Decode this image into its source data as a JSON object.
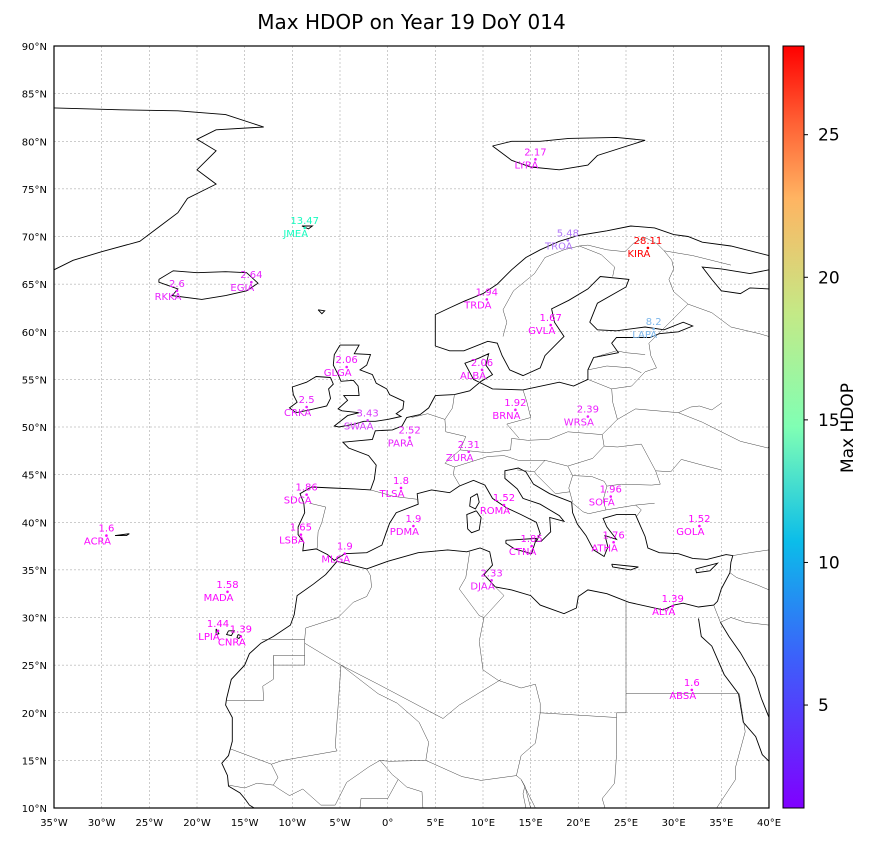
{
  "title": "Max HDOP on Year 19 DoY 014",
  "colorbar": {
    "label": "Max HDOP",
    "min": 1.39,
    "max": 28.11,
    "ticks": [
      5,
      10,
      15,
      20,
      25
    ],
    "tick_labels": [
      "5",
      "10",
      "15",
      "20",
      "25"
    ],
    "colormap": "rainbow"
  },
  "map": {
    "lon_range": [
      -35,
      40
    ],
    "lat_range": [
      10,
      90
    ],
    "lon_ticks": [
      -35,
      -30,
      -25,
      -20,
      -15,
      -10,
      -5,
      0,
      5,
      10,
      15,
      20,
      25,
      30,
      35,
      40
    ],
    "lon_tick_labels": [
      "35°W",
      "30°W",
      "25°W",
      "20°W",
      "15°W",
      "10°W",
      "5°W",
      "0°",
      "5°E",
      "10°E",
      "15°E",
      "20°E",
      "25°E",
      "30°E",
      "35°E",
      "40°E"
    ],
    "lat_ticks": [
      10,
      15,
      20,
      25,
      30,
      35,
      40,
      45,
      50,
      55,
      60,
      65,
      70,
      75,
      80,
      85,
      90
    ],
    "lat_tick_labels": [
      "10°N",
      "15°N",
      "20°N",
      "25°N",
      "30°N",
      "35°N",
      "40°N",
      "45°N",
      "50°N",
      "55°N",
      "60°N",
      "65°N",
      "70°N",
      "75°N",
      "80°N",
      "85°N",
      "90°N"
    ],
    "grid": true
  },
  "chart_data": {
    "type": "scatter",
    "title": "Max HDOP on Year 19 DoY 014",
    "xlim": [
      -35,
      40
    ],
    "ylim": [
      10,
      90
    ],
    "stations": [
      {
        "name": "LYRA",
        "value": "2.17",
        "lon": 15.5,
        "lat": 78.1
      },
      {
        "name": "JMEA",
        "value": "13.47",
        "lon": -8.7,
        "lat": 70.9
      },
      {
        "name": "TROA",
        "value": "5.48",
        "lon": 18.9,
        "lat": 69.6
      },
      {
        "name": "KIRA",
        "value": "28.11",
        "lon": 27.3,
        "lat": 68.8
      },
      {
        "name": "RKKA",
        "value": "2.6",
        "lon": -22.1,
        "lat": 64.3
      },
      {
        "name": "EGIA",
        "value": "2.64",
        "lon": -14.3,
        "lat": 65.2
      },
      {
        "name": "TRDA",
        "value": "1.94",
        "lon": 10.4,
        "lat": 63.4
      },
      {
        "name": "GVLA",
        "value": "1.67",
        "lon": 17.1,
        "lat": 60.7
      },
      {
        "name": "LAPA",
        "value": "8.2",
        "lon": 27.9,
        "lat": 60.3
      },
      {
        "name": "ALBA",
        "value": "2.06",
        "lon": 9.9,
        "lat": 56.0
      },
      {
        "name": "GLGA",
        "value": "2.06",
        "lon": -4.3,
        "lat": 56.3
      },
      {
        "name": "CRKA",
        "value": "2.5",
        "lon": -8.5,
        "lat": 52.1
      },
      {
        "name": "SWAA",
        "value": "3.43",
        "lon": -2.1,
        "lat": 50.7
      },
      {
        "name": "BRNA",
        "value": "1.92",
        "lon": 13.4,
        "lat": 51.8
      },
      {
        "name": "WRSA",
        "value": "2.39",
        "lon": 21.0,
        "lat": 51.1
      },
      {
        "name": "PARA",
        "value": "2.52",
        "lon": 2.3,
        "lat": 48.9
      },
      {
        "name": "ZURA",
        "value": "2.31",
        "lon": 8.5,
        "lat": 47.4
      },
      {
        "name": "SDCA",
        "value": "1.86",
        "lon": -8.5,
        "lat": 42.9
      },
      {
        "name": "TLSA",
        "value": "1.8",
        "lon": 1.4,
        "lat": 43.6
      },
      {
        "name": "ROMA",
        "value": "1.52",
        "lon": 12.2,
        "lat": 41.8
      },
      {
        "name": "SOFA",
        "value": "1.96",
        "lon": 23.4,
        "lat": 42.7
      },
      {
        "name": "ACRA",
        "value": "1.6",
        "lon": -29.5,
        "lat": 38.6
      },
      {
        "name": "PDMA",
        "value": "1.9",
        "lon": 2.7,
        "lat": 39.6
      },
      {
        "name": "LSBA",
        "value": "1.65",
        "lon": -9.1,
        "lat": 38.7
      },
      {
        "name": "GOLA",
        "value": "1.52",
        "lon": 32.7,
        "lat": 39.6
      },
      {
        "name": "MLGA",
        "value": "1.9",
        "lon": -4.5,
        "lat": 36.7
      },
      {
        "name": "CTNA",
        "value": "1.85",
        "lon": 15.1,
        "lat": 37.5
      },
      {
        "name": "ATHA",
        "value": "1.76",
        "lon": 23.7,
        "lat": 37.9
      },
      {
        "name": "DJAA",
        "value": "2.33",
        "lon": 10.9,
        "lat": 33.9
      },
      {
        "name": "MADA",
        "value": "1.58",
        "lon": -16.8,
        "lat": 32.7
      },
      {
        "name": "LPIA",
        "value": "1.44",
        "lon": -17.8,
        "lat": 28.6
      },
      {
        "name": "CNRA",
        "value": "1.39",
        "lon": -15.4,
        "lat": 28.0
      },
      {
        "name": "ALYA",
        "value": "1.39",
        "lon": 29.9,
        "lat": 31.2
      },
      {
        "name": "ABSA",
        "value": "1.6",
        "lon": 31.9,
        "lat": 22.4
      }
    ]
  }
}
